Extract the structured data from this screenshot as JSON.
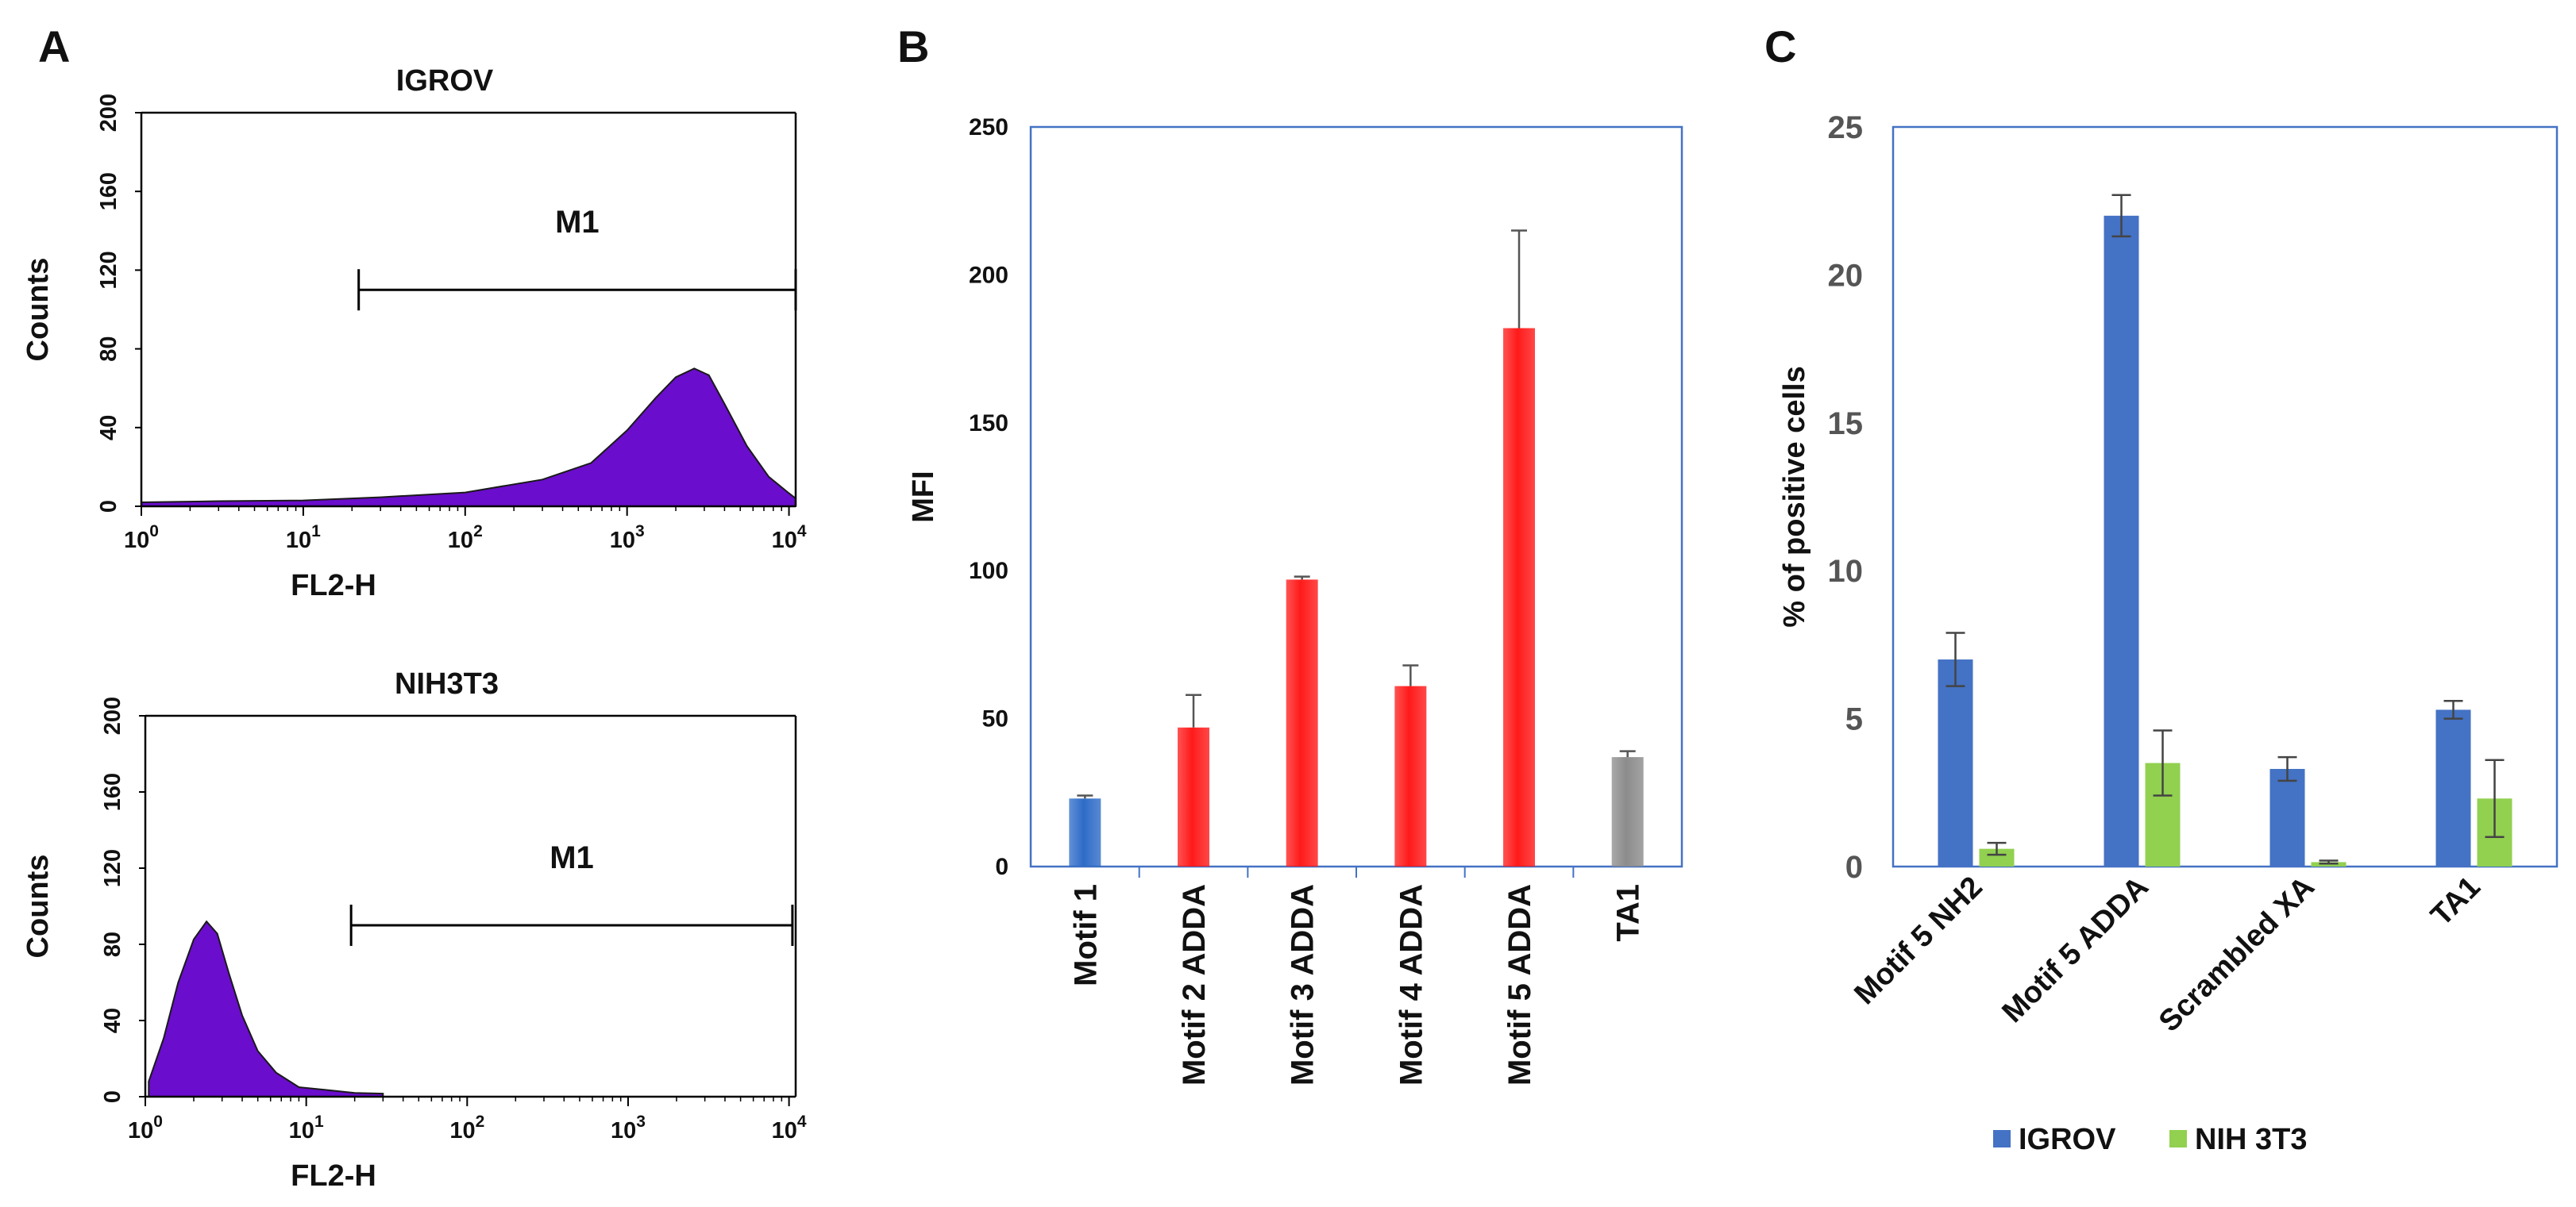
{
  "chart_data": [
    {
      "panel": "A",
      "type": "area",
      "title": "IGROV",
      "xlabel": "FL2-H",
      "ylabel": "Counts",
      "x_scale": "log",
      "x_ticks": [
        {
          "value": 1,
          "base": "10",
          "exp": "0"
        },
        {
          "value": 10,
          "base": "10",
          "exp": "1"
        },
        {
          "value": 100,
          "base": "10",
          "exp": "2"
        },
        {
          "value": 1000,
          "base": "10",
          "exp": "3"
        },
        {
          "value": 10000,
          "base": "10",
          "exp": "4"
        }
      ],
      "ylim": [
        0,
        200
      ],
      "y_ticks": [
        "0",
        "40",
        "80",
        "120",
        "160",
        "200"
      ],
      "marker": {
        "label": "M1",
        "x_start": 22,
        "x_end": 11000,
        "y": 110
      },
      "color": "#6a0dcc",
      "x": [
        1,
        3,
        10,
        30,
        100,
        300,
        600,
        1000,
        1500,
        2000,
        2600,
        3200,
        4000,
        5500,
        7500,
        10000,
        11000
      ],
      "values": [
        2,
        2,
        3,
        4,
        7,
        13,
        22,
        38,
        55,
        65,
        70,
        66,
        52,
        30,
        15,
        6,
        4
      ]
    },
    {
      "panel": "A",
      "type": "area",
      "title": "NIH3T3",
      "xlabel": "FL2-H",
      "ylabel": "Counts",
      "x_scale": "log",
      "x_ticks": [
        {
          "value": 1,
          "base": "10",
          "exp": "0"
        },
        {
          "value": 10,
          "base": "10",
          "exp": "1"
        },
        {
          "value": 100,
          "base": "10",
          "exp": "2"
        },
        {
          "value": 1000,
          "base": "10",
          "exp": "3"
        },
        {
          "value": 10000,
          "base": "10",
          "exp": "4"
        }
      ],
      "ylim": [
        0,
        200
      ],
      "y_ticks": [
        "0",
        "40",
        "80",
        "120",
        "160",
        "200"
      ],
      "marker": {
        "label": "M1",
        "x_start": 19,
        "x_end": 10500,
        "y": 90
      },
      "color": "#6a0dcc",
      "x": [
        1.05,
        1.3,
        1.6,
        2.0,
        2.4,
        2.8,
        3.3,
        4.0,
        5.0,
        6.5,
        9,
        13,
        20,
        30
      ],
      "values": [
        8,
        30,
        60,
        82,
        92,
        85,
        65,
        42,
        24,
        12,
        5,
        3,
        2,
        1
      ]
    },
    {
      "panel": "B",
      "type": "bar",
      "xlabel": "",
      "ylabel": "MFI",
      "ylim": [
        0,
        250
      ],
      "y_ticks": [
        "0",
        "50",
        "100",
        "150",
        "200",
        "250"
      ],
      "categories": [
        "Motif 1",
        "Motif 2 ADDA",
        "Motif 3 ADDA",
        "Motif 4 ADDA",
        "Motif 5 ADDA",
        "TA1"
      ],
      "values": [
        23,
        47,
        97,
        61,
        182,
        37
      ],
      "errors": [
        1,
        11,
        1,
        7,
        33,
        2
      ],
      "colors": [
        "#2e6cc7",
        "#ff1a1a",
        "#ff1a1a",
        "#ff1a1a",
        "#ff1a1a",
        "#8c8c8c"
      ]
    },
    {
      "panel": "C",
      "type": "bar",
      "xlabel": "",
      "ylabel": "% of positive cells",
      "ylim": [
        0,
        25
      ],
      "y_ticks": [
        "0",
        "5",
        "10",
        "15",
        "20",
        "25"
      ],
      "categories": [
        "Motif 5 NH2",
        "Motif 5 ADDA",
        "Scrambled XA",
        "TA1"
      ],
      "series": [
        {
          "name": "IGROV",
          "color": "#4472c4",
          "values": [
            7.0,
            22.0,
            3.3,
            5.3
          ],
          "errors": [
            0.9,
            0.7,
            0.4,
            0.3
          ]
        },
        {
          "name": "NIH 3T3",
          "color": "#92d050",
          "values": [
            0.6,
            3.5,
            0.15,
            2.3
          ],
          "errors": [
            0.2,
            1.1,
            0.05,
            1.3
          ]
        }
      ],
      "legend": "bottom"
    }
  ],
  "labels": {
    "panel_a": "A",
    "panel_b": "B",
    "panel_c": "C"
  }
}
